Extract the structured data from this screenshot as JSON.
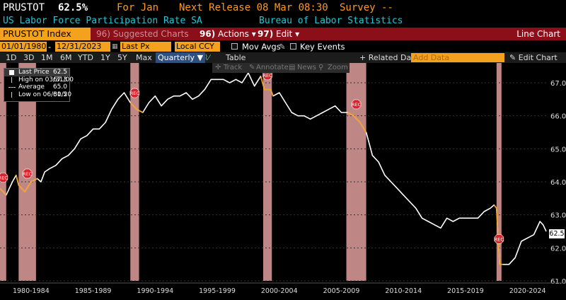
{
  "header": {
    "ticker": "PRUSTOT",
    "last_value": "62.5%",
    "for_label": "For Jan",
    "next_release": "Next Release 08 Mar 08:30",
    "survey": "Survey --",
    "description": "US Labor Force Participation Rate SA",
    "source": "Bureau of Labor Statistics"
  },
  "toolbar": {
    "security": "PRUSTOT Index",
    "suggested_num": "96)",
    "suggested_label": "Suggested Charts",
    "actions_num": "96)",
    "actions_label": "Actions",
    "edit_num": "97)",
    "edit_label": "Edit",
    "view_title": "Line Chart"
  },
  "settings": {
    "start_date": "01/01/1980",
    "end_date": "12/31/2023",
    "field": "Last Px",
    "currency": "Local CCY",
    "mov_avgs": "Mov Avgs",
    "key_events": "Key Events"
  },
  "periods": {
    "items": [
      "1D",
      "3D",
      "1M",
      "6M",
      "YTD",
      "1Y",
      "5Y",
      "Max"
    ],
    "selected": "Quarterly",
    "table": "Table",
    "related": "+ Related Dat",
    "add_data": "Add Data",
    "edit_chart": "Edit Chart"
  },
  "chart_tools": {
    "track": "Track",
    "annotate": "Annotate",
    "news": "News",
    "zoom": "Zoom"
  },
  "legend": {
    "last_price_label": "Last Price",
    "last_price_value": "62.5",
    "high_label": "High on 03/31/00",
    "high_value": "67.3",
    "avg_label": "Average",
    "avg_value": "65.0",
    "low_label": "Low on 06/30/20",
    "low_value": "61.5"
  },
  "price_tag": "62.5",
  "colors": {
    "background": "#000000",
    "line": "#ffffff",
    "recession": "#ffb3b3",
    "accent": "#f4a11e",
    "toolbar_red": "#8a0f19"
  },
  "chart_data": {
    "type": "line",
    "title": "",
    "xlabel": "",
    "ylabel": "",
    "ylim": [
      61.0,
      67.6
    ],
    "yticks": [
      61.0,
      62.0,
      63.0,
      64.0,
      65.0,
      66.0,
      67.0
    ],
    "ytick_labels": [
      "61.0",
      "62.0",
      "63.0",
      "64.0",
      "65.0",
      "66.0",
      "67.0"
    ],
    "xlim": [
      1980.0,
      2024.0
    ],
    "x_period_labels": [
      "1980-1984",
      "1985-1989",
      "1990-1994",
      "1995-1999",
      "2000-2004",
      "2005-2009",
      "2010-2014",
      "2015-2019",
      "2020-2024"
    ],
    "x_period_centers": [
      1982.5,
      1987.5,
      1992.5,
      1997.5,
      2002.5,
      2007.5,
      2012.5,
      2017.5,
      2022.5
    ],
    "recessions": [
      {
        "start": 1980.0,
        "end": 1980.5
      },
      {
        "start": 1981.5,
        "end": 1982.9
      },
      {
        "start": 1990.5,
        "end": 1991.2
      },
      {
        "start": 2001.2,
        "end": 2001.9
      },
      {
        "start": 2007.9,
        "end": 2009.5
      },
      {
        "start": 2020.0,
        "end": 2020.4
      }
    ],
    "rec_label": "REC",
    "series": [
      {
        "values": [
          [
            1980.0,
            63.8
          ],
          [
            1980.5,
            63.6
          ],
          [
            1981.0,
            64.0
          ],
          [
            1981.3,
            64.2
          ],
          [
            1981.5,
            63.9
          ],
          [
            1982.0,
            63.7
          ],
          [
            1982.5,
            64.0
          ],
          [
            1983.0,
            64.1
          ],
          [
            1983.3,
            64.0
          ],
          [
            1983.6,
            64.3
          ],
          [
            1984.0,
            64.4
          ],
          [
            1984.5,
            64.5
          ],
          [
            1985.0,
            64.7
          ],
          [
            1985.5,
            64.8
          ],
          [
            1986.0,
            65.0
          ],
          [
            1986.5,
            65.3
          ],
          [
            1987.0,
            65.4
          ],
          [
            1987.5,
            65.6
          ],
          [
            1988.0,
            65.6
          ],
          [
            1988.5,
            65.8
          ],
          [
            1989.0,
            66.2
          ],
          [
            1989.5,
            66.5
          ],
          [
            1990.0,
            66.7
          ],
          [
            1990.5,
            66.4
          ],
          [
            1991.0,
            66.2
          ],
          [
            1991.5,
            66.1
          ],
          [
            1992.0,
            66.4
          ],
          [
            1992.5,
            66.6
          ],
          [
            1993.0,
            66.3
          ],
          [
            1993.5,
            66.5
          ],
          [
            1994.0,
            66.6
          ],
          [
            1994.5,
            66.6
          ],
          [
            1995.0,
            66.7
          ],
          [
            1995.5,
            66.5
          ],
          [
            1996.0,
            66.6
          ],
          [
            1996.5,
            66.8
          ],
          [
            1997.0,
            67.1
          ],
          [
            1997.5,
            67.1
          ],
          [
            1998.0,
            67.1
          ],
          [
            1998.5,
            67.0
          ],
          [
            1999.0,
            67.1
          ],
          [
            1999.5,
            67.0
          ],
          [
            2000.0,
            67.3
          ],
          [
            2000.5,
            66.9
          ],
          [
            2001.0,
            67.2
          ],
          [
            2001.3,
            66.8
          ],
          [
            2001.8,
            66.8
          ],
          [
            2002.0,
            66.6
          ],
          [
            2002.5,
            66.7
          ],
          [
            2003.0,
            66.4
          ],
          [
            2003.5,
            66.1
          ],
          [
            2004.0,
            66.0
          ],
          [
            2004.5,
            66.0
          ],
          [
            2005.0,
            65.9
          ],
          [
            2005.5,
            66.0
          ],
          [
            2006.0,
            66.1
          ],
          [
            2006.5,
            66.2
          ],
          [
            2007.0,
            66.3
          ],
          [
            2007.5,
            66.1
          ],
          [
            2008.0,
            66.1
          ],
          [
            2008.5,
            66.0
          ],
          [
            2009.0,
            65.8
          ],
          [
            2009.5,
            65.5
          ],
          [
            2010.0,
            64.8
          ],
          [
            2010.5,
            64.6
          ],
          [
            2011.0,
            64.2
          ],
          [
            2011.5,
            64.0
          ],
          [
            2012.0,
            63.8
          ],
          [
            2012.5,
            63.6
          ],
          [
            2013.0,
            63.4
          ],
          [
            2013.5,
            63.2
          ],
          [
            2014.0,
            62.9
          ],
          [
            2014.5,
            62.8
          ],
          [
            2015.0,
            62.7
          ],
          [
            2015.5,
            62.6
          ],
          [
            2016.0,
            62.9
          ],
          [
            2016.5,
            62.8
          ],
          [
            2017.0,
            62.9
          ],
          [
            2017.5,
            62.9
          ],
          [
            2018.0,
            62.9
          ],
          [
            2018.5,
            62.9
          ],
          [
            2019.0,
            63.1
          ],
          [
            2019.5,
            63.2
          ],
          [
            2019.8,
            63.3
          ],
          [
            2020.0,
            63.2
          ],
          [
            2020.25,
            61.5
          ],
          [
            2020.5,
            61.5
          ],
          [
            2021.0,
            61.5
          ],
          [
            2021.5,
            61.7
          ],
          [
            2022.0,
            62.2
          ],
          [
            2022.5,
            62.3
          ],
          [
            2023.0,
            62.4
          ],
          [
            2023.5,
            62.8
          ],
          [
            2023.75,
            62.7
          ],
          [
            2024.0,
            62.5
          ]
        ]
      }
    ]
  }
}
